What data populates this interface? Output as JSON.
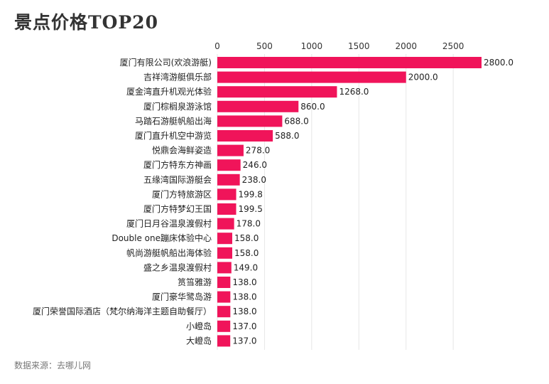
{
  "title": "景点价格TOP20",
  "source": "数据来源：去哪儿网",
  "chart_data": {
    "type": "bar",
    "orientation": "horizontal",
    "title": "景点价格TOP20",
    "xlim": [
      0,
      2800
    ],
    "ticks": [
      0,
      500,
      1000,
      1500,
      2000,
      2500
    ],
    "tick_labels": [
      "0",
      "500",
      "1000",
      "1500",
      "2000",
      "2500"
    ],
    "grid": true,
    "bar_color": "#f0145a",
    "categories": [
      "厦门有限公司(欢浪游艇)",
      "吉祥湾游艇俱乐部",
      "厦金湾直升机观光体验",
      "厦门棕榈泉游泳馆",
      "马踏石游艇帆船出海",
      "厦门直升机空中游览",
      "悦鼎会海鲜姿造",
      "厦门方特东方神画",
      "五缘湾国际游艇会",
      "厦门方特旅游区",
      "厦门方特梦幻王国",
      "厦门日月谷温泉渡假村",
      "Double one蹦床体验中心",
      "帆尚游艇帆船出海体验",
      "盛之乡温泉渡假村",
      "筼筜雅游",
      "厦门豪华鹭岛游",
      "厦门荣誉国际酒店（梵尔纳海洋主题自助餐厅）",
      "小嶝岛",
      "大嶝岛"
    ],
    "values": [
      2800.0,
      2000.0,
      1268.0,
      860.0,
      688.0,
      588.0,
      278.0,
      246.0,
      238.0,
      199.8,
      199.5,
      178.0,
      158.0,
      158.0,
      149.0,
      138.0,
      138.0,
      138.0,
      137.0,
      137.0
    ],
    "value_labels": [
      "2800.0",
      "2000.0",
      "1268.0",
      "860.0",
      "688.0",
      "588.0",
      "278.0",
      "246.0",
      "238.0",
      "199.8",
      "199.5",
      "178.0",
      "158.0",
      "158.0",
      "149.0",
      "138.0",
      "138.0",
      "138.0",
      "137.0",
      "137.0"
    ]
  }
}
